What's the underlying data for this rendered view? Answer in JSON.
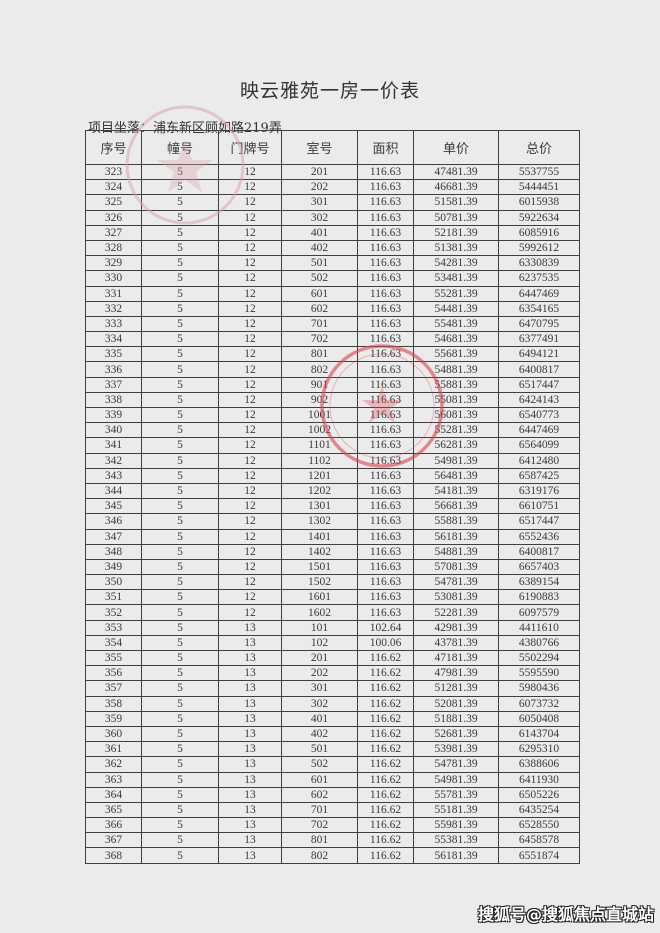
{
  "title": "映云雅苑一房一价表",
  "location": "项目坐落：浦东新区顾如路219弄",
  "watermark": "搜狐号@搜狐焦点直城站",
  "colors": {
    "stamp": "#d9434f",
    "paper": "#ebebeb"
  },
  "table": {
    "headers": [
      "序号",
      "幢号",
      "门牌号",
      "室号",
      "面积",
      "单价",
      "总价"
    ],
    "rows": [
      [
        "323",
        "5",
        "12",
        "201",
        "116.63",
        "47481.39",
        "5537755"
      ],
      [
        "324",
        "5",
        "12",
        "202",
        "116.63",
        "46681.39",
        "5444451"
      ],
      [
        "325",
        "5",
        "12",
        "301",
        "116.63",
        "51581.39",
        "6015938"
      ],
      [
        "326",
        "5",
        "12",
        "302",
        "116.63",
        "50781.39",
        "5922634"
      ],
      [
        "327",
        "5",
        "12",
        "401",
        "116.63",
        "52181.39",
        "6085916"
      ],
      [
        "328",
        "5",
        "12",
        "402",
        "116.63",
        "51381.39",
        "5992612"
      ],
      [
        "329",
        "5",
        "12",
        "501",
        "116.63",
        "54281.39",
        "6330839"
      ],
      [
        "330",
        "5",
        "12",
        "502",
        "116.63",
        "53481.39",
        "6237535"
      ],
      [
        "331",
        "5",
        "12",
        "601",
        "116.63",
        "55281.39",
        "6447469"
      ],
      [
        "332",
        "5",
        "12",
        "602",
        "116.63",
        "54481.39",
        "6354165"
      ],
      [
        "333",
        "5",
        "12",
        "701",
        "116.63",
        "55481.39",
        "6470795"
      ],
      [
        "334",
        "5",
        "12",
        "702",
        "116.63",
        "54681.39",
        "6377491"
      ],
      [
        "335",
        "5",
        "12",
        "801",
        "116.63",
        "55681.39",
        "6494121"
      ],
      [
        "336",
        "5",
        "12",
        "802",
        "116.63",
        "54881.39",
        "6400817"
      ],
      [
        "337",
        "5",
        "12",
        "901",
        "116.63",
        "55881.39",
        "6517447"
      ],
      [
        "338",
        "5",
        "12",
        "902",
        "116.63",
        "55081.39",
        "6424143"
      ],
      [
        "339",
        "5",
        "12",
        "1001",
        "116.63",
        "56081.39",
        "6540773"
      ],
      [
        "340",
        "5",
        "12",
        "1002",
        "116.63",
        "55281.39",
        "6447469"
      ],
      [
        "341",
        "5",
        "12",
        "1101",
        "116.63",
        "56281.39",
        "6564099"
      ],
      [
        "342",
        "5",
        "12",
        "1102",
        "116.63",
        "54981.39",
        "6412480"
      ],
      [
        "343",
        "5",
        "12",
        "1201",
        "116.63",
        "56481.39",
        "6587425"
      ],
      [
        "344",
        "5",
        "12",
        "1202",
        "116.63",
        "54181.39",
        "6319176"
      ],
      [
        "345",
        "5",
        "12",
        "1301",
        "116.63",
        "56681.39",
        "6610751"
      ],
      [
        "346",
        "5",
        "12",
        "1302",
        "116.63",
        "55881.39",
        "6517447"
      ],
      [
        "347",
        "5",
        "12",
        "1401",
        "116.63",
        "56181.39",
        "6552436"
      ],
      [
        "348",
        "5",
        "12",
        "1402",
        "116.63",
        "54881.39",
        "6400817"
      ],
      [
        "349",
        "5",
        "12",
        "1501",
        "116.63",
        "57081.39",
        "6657403"
      ],
      [
        "350",
        "5",
        "12",
        "1502",
        "116.63",
        "54781.39",
        "6389154"
      ],
      [
        "351",
        "5",
        "12",
        "1601",
        "116.63",
        "53081.39",
        "6190883"
      ],
      [
        "352",
        "5",
        "12",
        "1602",
        "116.63",
        "52281.39",
        "6097579"
      ],
      [
        "353",
        "5",
        "13",
        "101",
        "102.64",
        "42981.39",
        "4411610"
      ],
      [
        "354",
        "5",
        "13",
        "102",
        "100.06",
        "43781.39",
        "4380766"
      ],
      [
        "355",
        "5",
        "13",
        "201",
        "116.62",
        "47181.39",
        "5502294"
      ],
      [
        "356",
        "5",
        "13",
        "202",
        "116.62",
        "47981.39",
        "5595590"
      ],
      [
        "357",
        "5",
        "13",
        "301",
        "116.62",
        "51281.39",
        "5980436"
      ],
      [
        "358",
        "5",
        "13",
        "302",
        "116.62",
        "52081.39",
        "6073732"
      ],
      [
        "359",
        "5",
        "13",
        "401",
        "116.62",
        "51881.39",
        "6050408"
      ],
      [
        "360",
        "5",
        "13",
        "402",
        "116.62",
        "52681.39",
        "6143704"
      ],
      [
        "361",
        "5",
        "13",
        "501",
        "116.62",
        "53981.39",
        "6295310"
      ],
      [
        "362",
        "5",
        "13",
        "502",
        "116.62",
        "54781.39",
        "6388606"
      ],
      [
        "363",
        "5",
        "13",
        "601",
        "116.62",
        "54981.39",
        "6411930"
      ],
      [
        "364",
        "5",
        "13",
        "602",
        "116.62",
        "55781.39",
        "6505226"
      ],
      [
        "365",
        "5",
        "13",
        "701",
        "116.62",
        "55181.39",
        "6435254"
      ],
      [
        "366",
        "5",
        "13",
        "702",
        "116.62",
        "55981.39",
        "6528550"
      ],
      [
        "367",
        "5",
        "13",
        "801",
        "116.62",
        "55381.39",
        "6458578"
      ],
      [
        "368",
        "5",
        "13",
        "802",
        "116.62",
        "56181.39",
        "6551874"
      ]
    ]
  }
}
